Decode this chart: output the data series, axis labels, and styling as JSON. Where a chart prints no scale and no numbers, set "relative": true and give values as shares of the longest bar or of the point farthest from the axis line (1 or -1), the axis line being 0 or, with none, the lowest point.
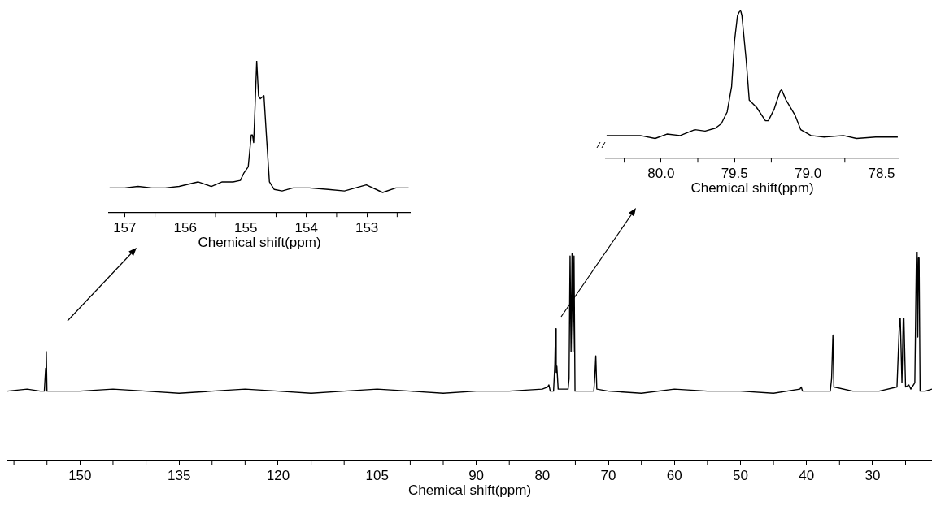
{
  "chart_data": [
    {
      "type": "line",
      "relative": true,
      "xlabel": "Chemical shift(ppm)",
      "xlim": [
        161,
        21
      ],
      "grid": false,
      "legend": false,
      "marker": "none",
      "tick_labels": "x",
      "xticks": [
        {
          "value": 160,
          "label": null
        },
        {
          "value": 155,
          "label": null
        },
        150,
        {
          "value": 145,
          "label": null
        },
        {
          "value": 140,
          "label": null
        },
        135,
        {
          "value": 130,
          "label": null
        },
        {
          "value": 125,
          "label": null
        },
        120,
        {
          "value": 115,
          "label": null
        },
        {
          "value": 110,
          "label": null
        },
        105,
        {
          "value": 100,
          "label": null
        },
        {
          "value": 95,
          "label": null
        },
        90,
        {
          "value": 85,
          "label": null
        },
        80,
        {
          "value": 75,
          "label": null
        },
        70,
        {
          "value": 65,
          "label": null
        },
        60,
        {
          "value": 55,
          "label": null
        },
        50,
        {
          "value": 45,
          "label": null
        },
        40,
        {
          "value": 35,
          "label": null
        },
        30,
        {
          "value": 25,
          "label": null
        }
      ],
      "series": [
        {
          "color": "#000000",
          "x": [
            161,
            158,
            156,
            155.4,
            155.2,
            155.1,
            155.0,
            154.8,
            150,
            145,
            140,
            135,
            130,
            125,
            120,
            115,
            110,
            105,
            100,
            95,
            90,
            85,
            80,
            79.2,
            79.0,
            78.8,
            78.3,
            78.1,
            78.0,
            77.9,
            77.8,
            77.6,
            76.1,
            75.95,
            75.8,
            75.65,
            75.5,
            75.35,
            75.2,
            75.05,
            74,
            72.2,
            72.05,
            71.9,
            71.75,
            70,
            65,
            60,
            55,
            50,
            45,
            41,
            40.8,
            40.6,
            36.4,
            36.2,
            36.0,
            35.85,
            33,
            29,
            26.3,
            25.9,
            25.8,
            25.55,
            25.35,
            25.25,
            25.0,
            24.5,
            24.2,
            23.6,
            23.35,
            23.25,
            23.15,
            23.05,
            22.95,
            22.8,
            22,
            21
          ],
          "values": [
            0.33,
            0.34,
            0.33,
            0.33,
            0.44,
            0.52,
            0.33,
            0.33,
            0.33,
            0.34,
            0.33,
            0.32,
            0.33,
            0.34,
            0.33,
            0.32,
            0.33,
            0.34,
            0.33,
            0.32,
            0.33,
            0.33,
            0.34,
            0.35,
            0.36,
            0.33,
            0.33,
            0.46,
            0.63,
            0.42,
            0.45,
            0.34,
            0.34,
            0.39,
            0.98,
            0.52,
            0.99,
            0.52,
            0.98,
            0.33,
            0.33,
            0.33,
            0.4,
            0.5,
            0.34,
            0.33,
            0.32,
            0.34,
            0.33,
            0.33,
            0.32,
            0.34,
            0.35,
            0.33,
            0.33,
            0.39,
            0.6,
            0.35,
            0.33,
            0.33,
            0.35,
            0.68,
            0.68,
            0.37,
            0.68,
            0.68,
            0.35,
            0.36,
            0.34,
            0.37,
            1.0,
            1.0,
            0.59,
            0.97,
            0.97,
            0.33,
            0.33,
            0.34
          ]
        }
      ]
    },
    {
      "type": "line",
      "relative": true,
      "xlabel": "Chemical shift(ppm)",
      "xlim": [
        157.26,
        152.29
      ],
      "grid": false,
      "legend": false,
      "marker": "none",
      "tick_labels": "x",
      "xticks": [
        157,
        {
          "value": 156.5,
          "label": null
        },
        156,
        {
          "value": 155.5,
          "label": null
        },
        155,
        {
          "value": 154.5,
          "label": null
        },
        154,
        {
          "value": 153.5,
          "label": null
        },
        153,
        {
          "value": 152.5,
          "label": null
        }
      ],
      "series": [
        {
          "color": "#000000",
          "x": [
            157.25,
            157.0,
            156.78,
            156.55,
            156.33,
            156.1,
            155.79,
            155.57,
            155.39,
            155.21,
            155.09,
            155.03,
            154.96,
            154.91,
            154.89,
            154.87,
            154.85,
            154.82,
            154.79,
            154.76,
            154.7,
            154.66,
            154.61,
            154.53,
            154.4,
            154.22,
            153.95,
            153.64,
            153.37,
            153.01,
            152.74,
            152.52,
            152.31
          ],
          "values": [
            0.16,
            0.16,
            0.17,
            0.16,
            0.16,
            0.17,
            0.2,
            0.17,
            0.2,
            0.2,
            0.21,
            0.26,
            0.3,
            0.51,
            0.51,
            0.46,
            0.67,
            1.0,
            0.77,
            0.75,
            0.77,
            0.51,
            0.2,
            0.15,
            0.14,
            0.16,
            0.16,
            0.15,
            0.14,
            0.18,
            0.13,
            0.16,
            0.16
          ]
        }
      ]
    },
    {
      "type": "line",
      "relative": true,
      "xlabel": "Chemical shift(ppm)",
      "xlim": [
        80.375,
        78.384
      ],
      "grid": false,
      "legend": false,
      "marker": "none",
      "tick_labels": "x",
      "xticks": [
        {
          "value": 80.25,
          "label": null
        },
        {
          "value": 80,
          "label": "80.0"
        },
        {
          "value": 79.75,
          "label": null
        },
        79.5,
        {
          "value": 79.25,
          "label": null
        },
        {
          "value": 79,
          "label": "79.0"
        },
        {
          "value": 78.75,
          "label": null
        },
        78.5
      ],
      "series": [
        {
          "color": "#000000",
          "x": [
            80.37,
            80.24,
            80.14,
            80.04,
            79.96,
            79.87,
            79.77,
            79.7,
            79.63,
            79.59,
            79.55,
            79.52,
            79.5,
            79.48,
            79.46,
            79.45,
            79.42,
            79.4,
            79.35,
            79.29,
            79.27,
            79.23,
            79.19,
            79.18,
            79.15,
            79.09,
            79.05,
            78.98,
            78.89,
            78.76,
            78.67,
            78.54,
            78.39
          ],
          "values": [
            0.15,
            0.15,
            0.15,
            0.13,
            0.16,
            0.15,
            0.19,
            0.18,
            0.2,
            0.23,
            0.31,
            0.48,
            0.79,
            0.96,
            1.0,
            0.96,
            0.65,
            0.39,
            0.34,
            0.25,
            0.25,
            0.33,
            0.45,
            0.46,
            0.39,
            0.29,
            0.19,
            0.15,
            0.14,
            0.15,
            0.13,
            0.14,
            0.14
          ]
        }
      ]
    }
  ]
}
